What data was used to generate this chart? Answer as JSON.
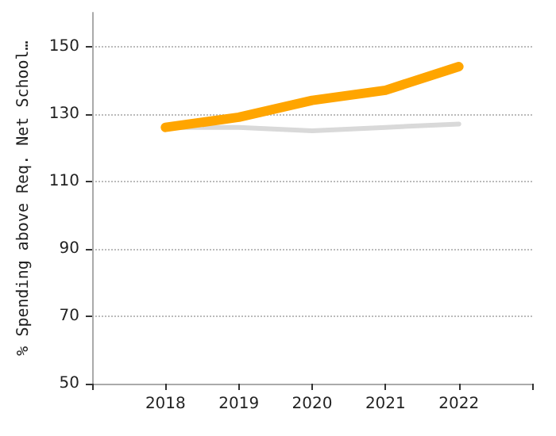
{
  "chart_data": {
    "type": "line",
    "ylabel": "% Spending above Req. Net School…",
    "x": [
      2018,
      2019,
      2020,
      2021,
      2022
    ],
    "series": [
      {
        "color": "#d9d9d9",
        "values": [
          126,
          126,
          125,
          126,
          127
        ]
      },
      {
        "color": "#ffa500",
        "values": [
          126,
          129,
          134,
          137,
          144
        ]
      }
    ],
    "xlim": [
      2017,
      2023
    ],
    "xticks": [
      {
        "value": 2017,
        "label": null
      },
      2018,
      2019,
      2020,
      2021,
      2022,
      {
        "value": 2023,
        "label": null
      }
    ],
    "ylim": [
      50,
      160
    ],
    "yticks": [
      50,
      70,
      90,
      110,
      130,
      150
    ],
    "grid": "y",
    "marker": "none"
  }
}
